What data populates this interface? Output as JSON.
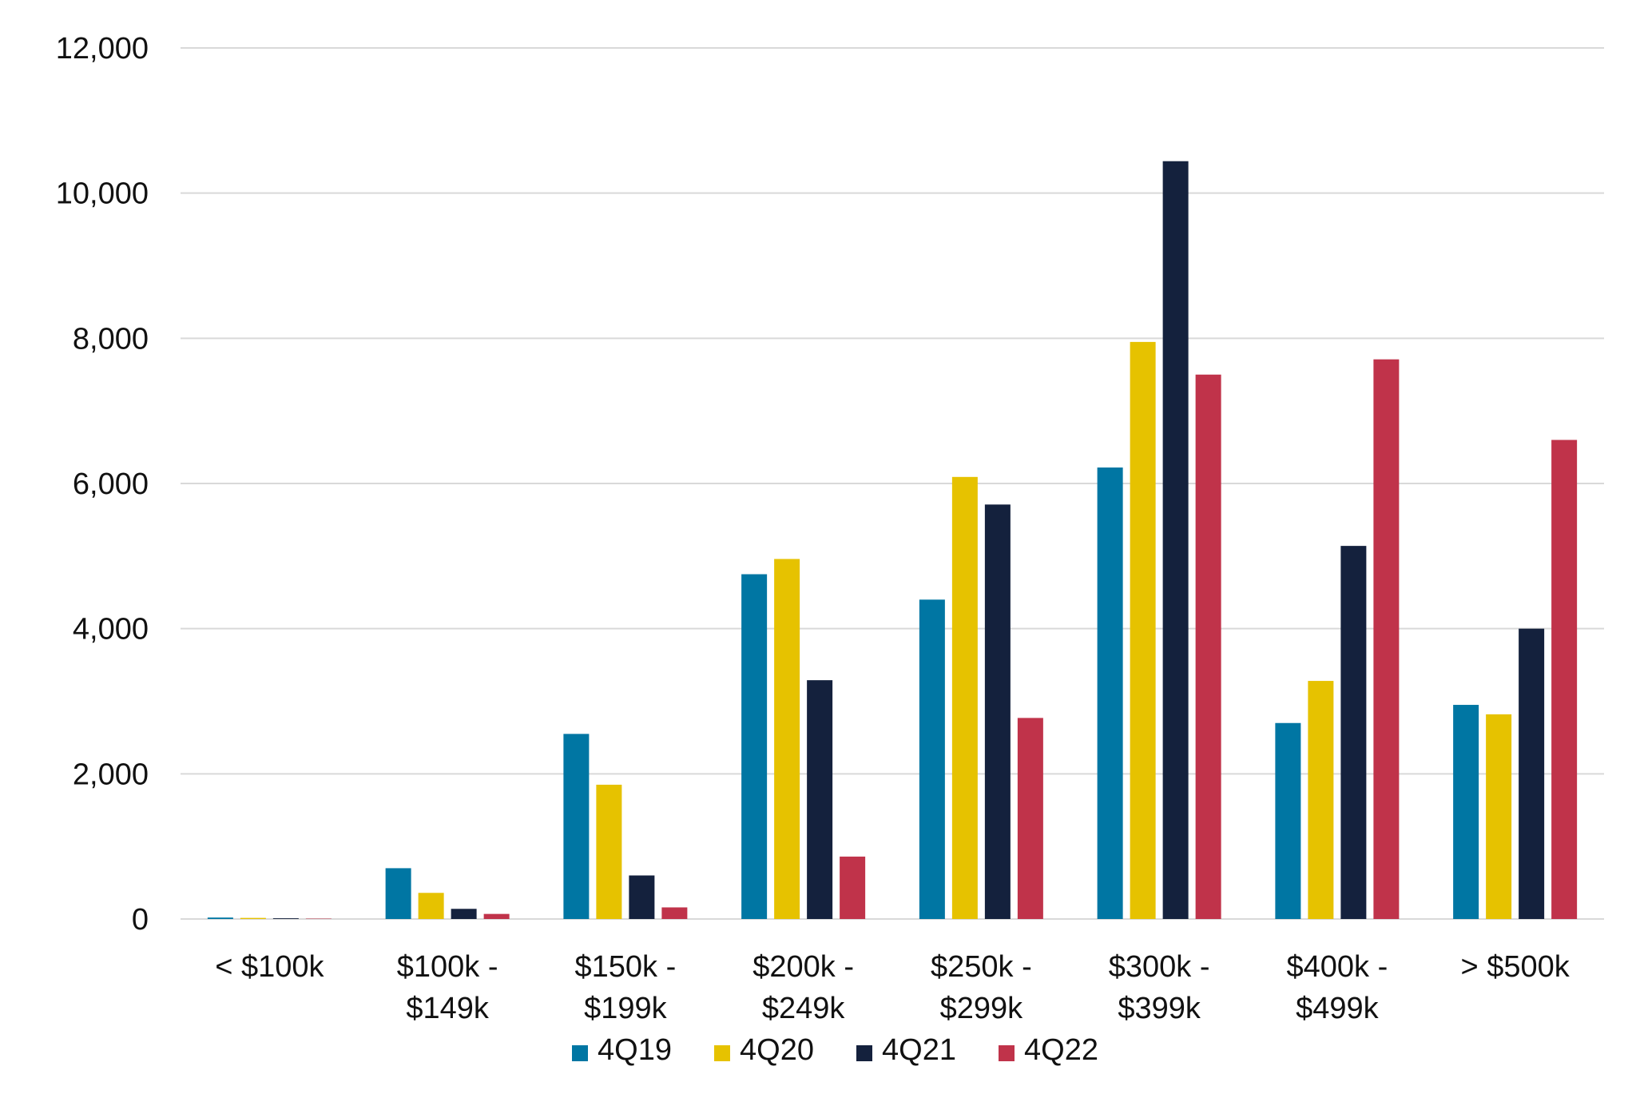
{
  "chart_data": {
    "type": "bar",
    "title": "",
    "xlabel": "",
    "ylabel": "",
    "ylim": [
      0,
      12000
    ],
    "yticks": [
      0,
      2000,
      4000,
      6000,
      8000,
      10000,
      12000
    ],
    "ytick_labels": [
      "0",
      "2,000",
      "4,000",
      "6,000",
      "8,000",
      "10,000",
      "12,000"
    ],
    "grid": true,
    "legend_position": "bottom",
    "categories": [
      [
        "< $100k"
      ],
      [
        "$100k -",
        "$149k"
      ],
      [
        "$150k -",
        "$199k"
      ],
      [
        "$200k -",
        "$249k"
      ],
      [
        "$250k -",
        "$299k"
      ],
      [
        "$300k -",
        "$399k"
      ],
      [
        "$400k -",
        "$499k"
      ],
      [
        "> $500k"
      ]
    ],
    "series": [
      {
        "name": "4Q19",
        "color": "#0076a3",
        "values": [
          20,
          700,
          2550,
          4750,
          4400,
          6220,
          2700,
          2950
        ]
      },
      {
        "name": "4Q20",
        "color": "#e6c200",
        "values": [
          15,
          360,
          1850,
          4960,
          6090,
          7950,
          3280,
          2820
        ]
      },
      {
        "name": "4Q21",
        "color": "#14213d",
        "values": [
          10,
          140,
          600,
          3290,
          5710,
          10440,
          5140,
          4000
        ]
      },
      {
        "name": "4Q22",
        "color": "#c0334a",
        "values": [
          5,
          70,
          160,
          860,
          2770,
          7500,
          7710,
          6600
        ]
      }
    ]
  }
}
